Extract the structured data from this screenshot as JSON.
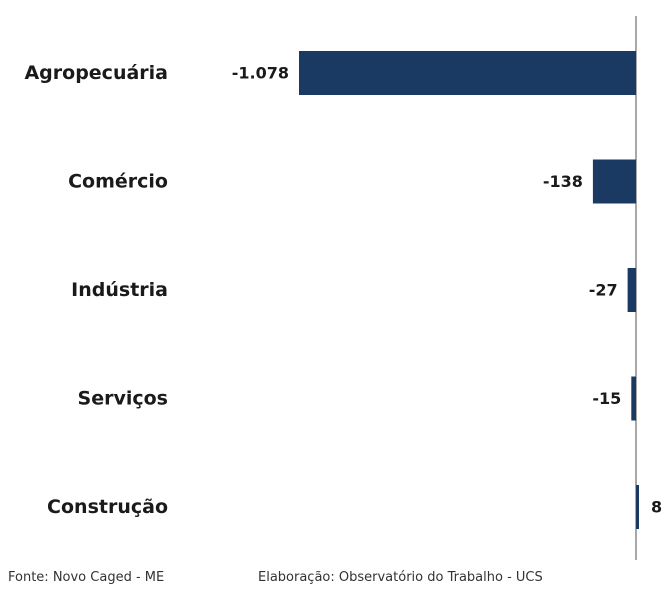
{
  "colors": {
    "bar": "#1b3a63",
    "axis": "#8c8c8c",
    "text": "#1a1a1a"
  },
  "chart_data": {
    "type": "bar",
    "orientation": "horizontal",
    "categories": [
      "Agropecuária",
      "Comércio",
      "Indústria",
      "Serviços",
      "Construção"
    ],
    "values": [
      -1078,
      -138,
      -27,
      -15,
      8
    ],
    "data_labels": [
      "-1.078",
      "-138",
      "-27",
      "-15",
      "8"
    ],
    "title": "",
    "xlabel": "",
    "ylabel": "",
    "xlim": [
      -1078,
      8
    ],
    "grid": false,
    "legend": "none"
  },
  "footer": {
    "source": "Fonte: Novo Caged - ME",
    "credit": "Elaboração: Observatório do Trabalho - UCS"
  }
}
